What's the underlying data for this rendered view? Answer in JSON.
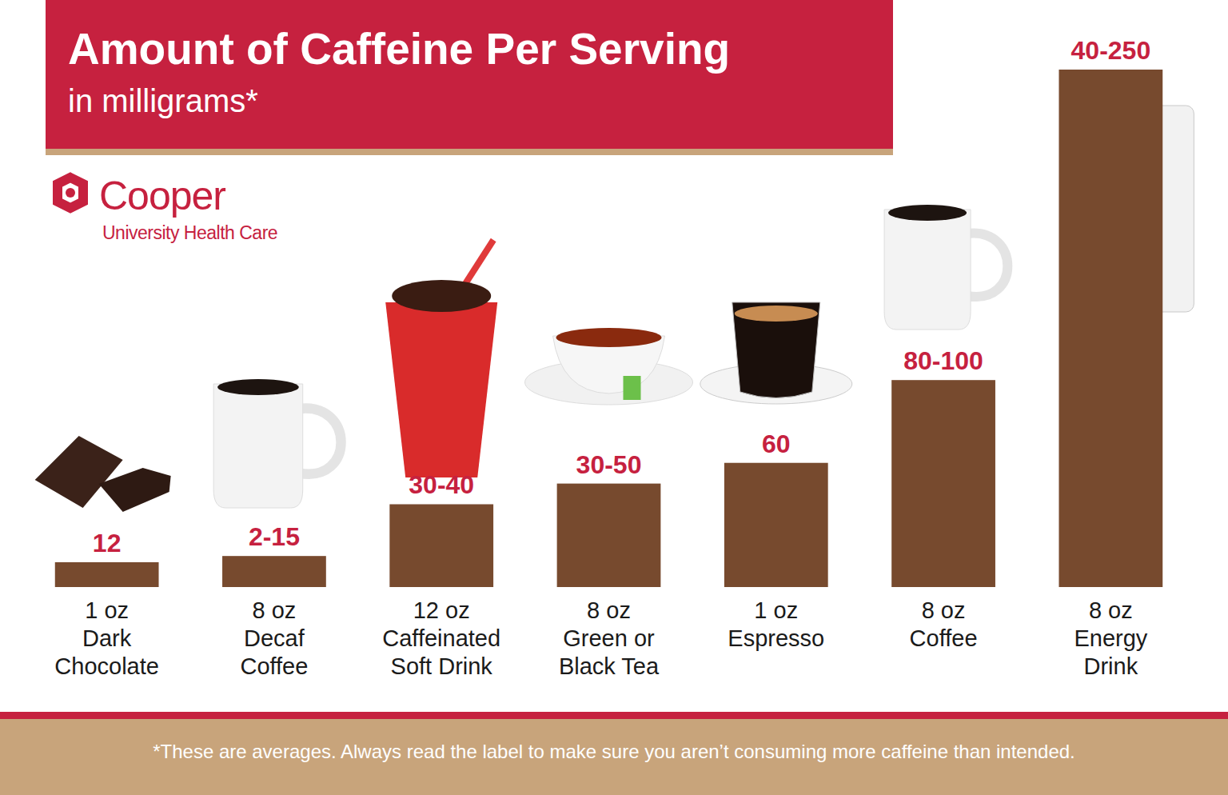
{
  "chart_data": {
    "type": "bar",
    "title": "Amount of Caffeine Per Serving",
    "subtitle": "in milligrams*",
    "categories": [
      "1 oz\nDark\nChocolate",
      "8 oz\nDecaf\nCoffee",
      "12 oz\nCaffeinated\nSoft Drink",
      "8 oz\nGreen or\nBlack Tea",
      "1 oz\nEspresso",
      "8 oz\nCoffee",
      "8 oz\nEnergy\nDrink"
    ],
    "values": [
      12,
      15,
      40,
      50,
      60,
      100,
      250
    ],
    "value_labels": [
      "12",
      "2-15",
      "30-40",
      "30-50",
      "60",
      "80-100",
      "40-250"
    ],
    "color": "#774a2e",
    "ylim": [
      0,
      250
    ],
    "data_labels": true,
    "tick_labels": false,
    "annotations": [
      "Cooper",
      "University Health Care",
      "*These are averages. Always read the label to make sure you aren’t consuming more caffeine than intended."
    ]
  }
}
